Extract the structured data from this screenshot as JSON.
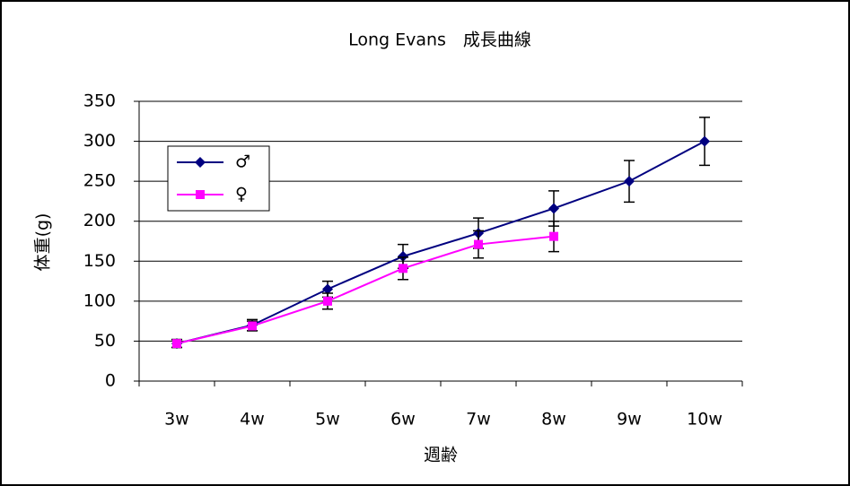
{
  "chart_data": {
    "type": "line",
    "title": "Long Evans　成長曲線",
    "x_label": "週齢",
    "y_label": "体重(g)",
    "categories": [
      "3w",
      "4w",
      "5w",
      "6w",
      "7w",
      "8w",
      "9w",
      "10w"
    ],
    "series": [
      {
        "name": "♂",
        "color": "#000080",
        "marker": "diamond",
        "values": [
          47,
          70,
          115,
          156,
          185,
          216,
          250,
          300
        ],
        "errors": [
          5,
          7,
          10,
          15,
          19,
          22,
          26,
          30
        ]
      },
      {
        "name": "♀",
        "color": "#ff00ff",
        "marker": "square",
        "values": [
          47,
          69,
          100,
          141,
          171,
          181,
          null,
          null
        ],
        "errors": [
          5,
          6,
          10,
          14,
          17,
          19,
          null,
          null
        ]
      }
    ],
    "ylim": [
      0,
      350
    ],
    "yticks": [
      0,
      50,
      100,
      150,
      200,
      250,
      300,
      350
    ],
    "grid": true,
    "legend": "upper left"
  }
}
